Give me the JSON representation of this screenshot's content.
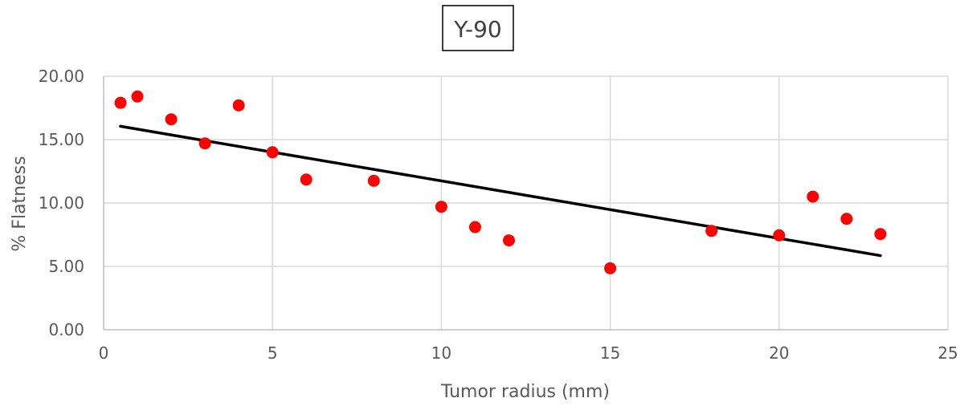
{
  "chart_data": {
    "type": "scatter",
    "title": "Y-90",
    "xlabel": "Tumor radius (mm)",
    "ylabel": "% Flatness",
    "xlim": [
      0,
      25
    ],
    "ylim": [
      0,
      20
    ],
    "x_ticks": [
      "0",
      "5",
      "10",
      "15",
      "20",
      "25"
    ],
    "y_ticks": [
      "0.00",
      "5.00",
      "10.00",
      "15.00",
      "20.00"
    ],
    "grid": true,
    "legend": "none",
    "series": [
      {
        "points": [
          {
            "x": 0.5,
            "y": 17.9
          },
          {
            "x": 1,
            "y": 18.4
          },
          {
            "x": 2,
            "y": 16.6
          },
          {
            "x": 3,
            "y": 14.7
          },
          {
            "x": 4,
            "y": 17.7
          },
          {
            "x": 5,
            "y": 14.0
          },
          {
            "x": 6,
            "y": 11.85
          },
          {
            "x": 8,
            "y": 11.75
          },
          {
            "x": 10,
            "y": 9.7
          },
          {
            "x": 11,
            "y": 8.1
          },
          {
            "x": 12,
            "y": 7.05
          },
          {
            "x": 15,
            "y": 4.85
          },
          {
            "x": 18,
            "y": 7.8
          },
          {
            "x": 20,
            "y": 7.45
          },
          {
            "x": 21,
            "y": 10.5
          },
          {
            "x": 22,
            "y": 8.75
          },
          {
            "x": 23,
            "y": 7.55
          }
        ]
      }
    ],
    "trendline": {
      "type": "linear",
      "start": {
        "x": 0.5,
        "y": 16.05
      },
      "end": {
        "x": 23,
        "y": 5.85
      }
    },
    "colors": {
      "points": "#ff0000",
      "trendline": "#000000",
      "grid": "#d9d9d9",
      "axis": "#bfbfbf",
      "title_border": "#000000"
    }
  }
}
